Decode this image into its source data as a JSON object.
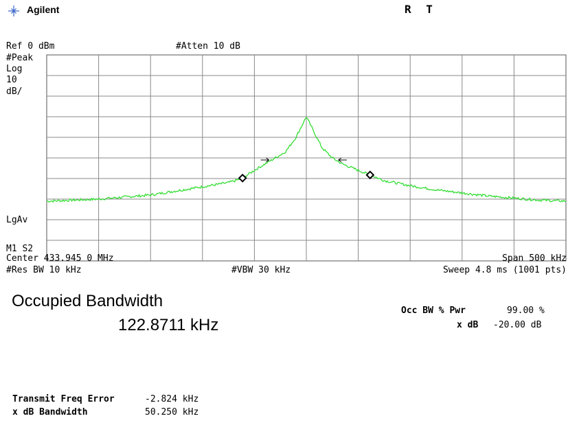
{
  "header": {
    "brand": "Agilent",
    "status": "R  T"
  },
  "annotations": {
    "ref": "Ref 0 dBm",
    "atten": "#Atten 10 dB",
    "detector": "#Peak",
    "scale_type": "Log",
    "scale_value": "10",
    "scale_unit": "dB/",
    "avg_mode": "LgAv",
    "markers": "M1  S2",
    "center": "Center 433.945 0 MHz",
    "span": "Span 500 kHz",
    "rbw": "#Res BW 10 kHz",
    "vbw": "#VBW 30 kHz",
    "sweep": "Sweep 4.8 ms (1001 pts)"
  },
  "results": {
    "title": "Occupied Bandwidth",
    "occ_bw_value": "122.8711 kHz",
    "occ_bw_pwr_label": "Occ BW % Pwr",
    "occ_bw_pwr_value": "99.00 %",
    "xdb_label": "x dB",
    "xdb_value": "-20.00 dB",
    "freq_err_label": "Transmit Freq Error",
    "freq_err_value": "-2.824 kHz",
    "xdb_bw_label": "x dB Bandwidth",
    "xdb_bw_value": "50.250 kHz"
  },
  "colors": {
    "trace": "#33dd33",
    "grid": "#888888",
    "logo": "#3a66c9"
  },
  "chart_data": {
    "type": "line",
    "x_unit": "MHz",
    "x_center": 433.945,
    "x_span_khz": 500,
    "ylim": [
      -100,
      0
    ],
    "y_unit": "dBm",
    "grid": true,
    "series": [
      {
        "x_offset_khz": [
          -250,
          -225,
          -200,
          -175,
          -150,
          -125,
          -100,
          -75,
          -62,
          -50,
          -40,
          -30,
          -20,
          -10,
          0,
          8,
          15,
          25,
          35,
          45,
          60,
          75,
          100,
          125,
          150,
          175,
          200,
          225,
          250
        ],
        "values": [
          -71,
          -70.5,
          -70,
          -69,
          -68,
          -66,
          -64,
          -62,
          -60,
          -56,
          -53,
          -50,
          -47,
          -40,
          -30,
          -38,
          -45,
          -50,
          -53,
          -55,
          -58,
          -61,
          -63.5,
          -65.5,
          -67,
          -68.5,
          -69.5,
          -70.5,
          -71
        ]
      }
    ],
    "diamond_markers_khz": [
      -61.4,
      61.4
    ],
    "arrow_markers_khz": [
      -40,
      35
    ]
  }
}
